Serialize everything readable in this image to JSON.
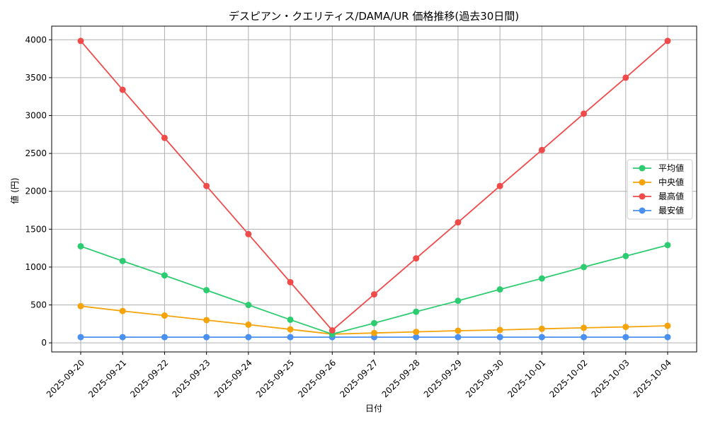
{
  "chart_data": {
    "type": "line",
    "title": "デスピアン・クエリティス/DAMA/UR 価格推移(過去30日間)",
    "xlabel": "日付",
    "ylabel": "値 (円)",
    "x": [
      "2025-09-20",
      "2025-09-21",
      "2025-09-22",
      "2025-09-23",
      "2025-09-24",
      "2025-09-25",
      "2025-09-26",
      "2025-09-27",
      "2025-09-28",
      "2025-09-29",
      "2025-09-30",
      "2025-10-01",
      "2025-10-02",
      "2025-10-03",
      "2025-10-04"
    ],
    "ylim": [
      -120,
      4180
    ],
    "yticks": [
      0,
      500,
      1000,
      1500,
      2000,
      2500,
      3000,
      3500,
      4000
    ],
    "grid": true,
    "legend_position": "center-right",
    "series": [
      {
        "name": "平均値",
        "color": "#2ecc71",
        "values": [
          1275,
          1080,
          890,
          695,
          500,
          305,
          115,
          260,
          410,
          555,
          705,
          850,
          1000,
          1145,
          1290
        ]
      },
      {
        "name": "中央値",
        "color": "#f5a30a",
        "values": [
          485,
          420,
          360,
          300,
          240,
          178,
          115,
          130,
          145,
          160,
          170,
          185,
          198,
          210,
          225
        ]
      },
      {
        "name": "最高値",
        "color": "#f04b4b",
        "values": [
          3985,
          3340,
          2705,
          2070,
          1435,
          800,
          165,
          640,
          1115,
          1590,
          2070,
          2545,
          3025,
          3500,
          3985
        ]
      },
      {
        "name": "最安値",
        "color": "#4a90f0",
        "values": [
          75,
          75,
          75,
          75,
          75,
          75,
          75,
          75,
          75,
          75,
          75,
          75,
          75,
          75,
          75
        ]
      }
    ]
  }
}
